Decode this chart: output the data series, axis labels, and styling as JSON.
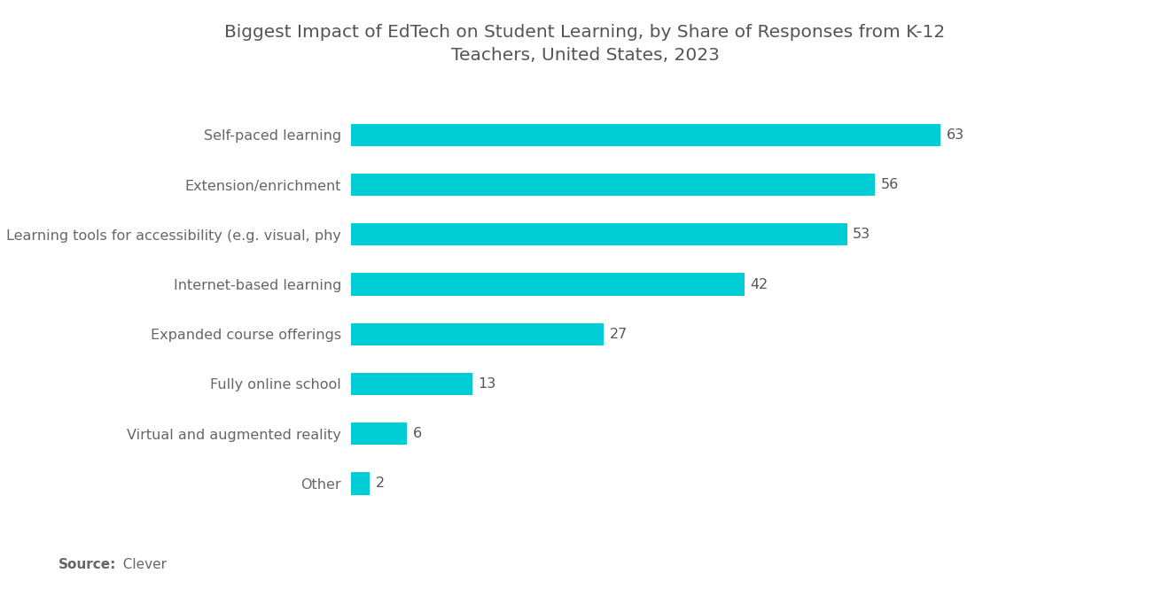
{
  "title": "Biggest Impact of EdTech on Student Learning, by Share of Responses from K-12\nTeachers, United States, 2023",
  "categories": [
    "Other",
    "Virtual and augmented reality",
    "Fully online school",
    "Expanded course offerings",
    "Internet-based learning",
    "Learning tools for accessibility (e.g. visual, phy",
    "Extension/enrichment",
    "Self-paced learning"
  ],
  "values": [
    2,
    6,
    13,
    27,
    42,
    53,
    56,
    63
  ],
  "bar_color": "#00CDD4",
  "title_color": "#555555",
  "label_color": "#666666",
  "value_color": "#555555",
  "source_bold": "Source:",
  "source_regular": "  Clever",
  "background_color": "#ffffff",
  "title_fontsize": 14.5,
  "label_fontsize": 11.5,
  "value_fontsize": 11.5,
  "source_fontsize": 11,
  "xlim": [
    0,
    75
  ]
}
